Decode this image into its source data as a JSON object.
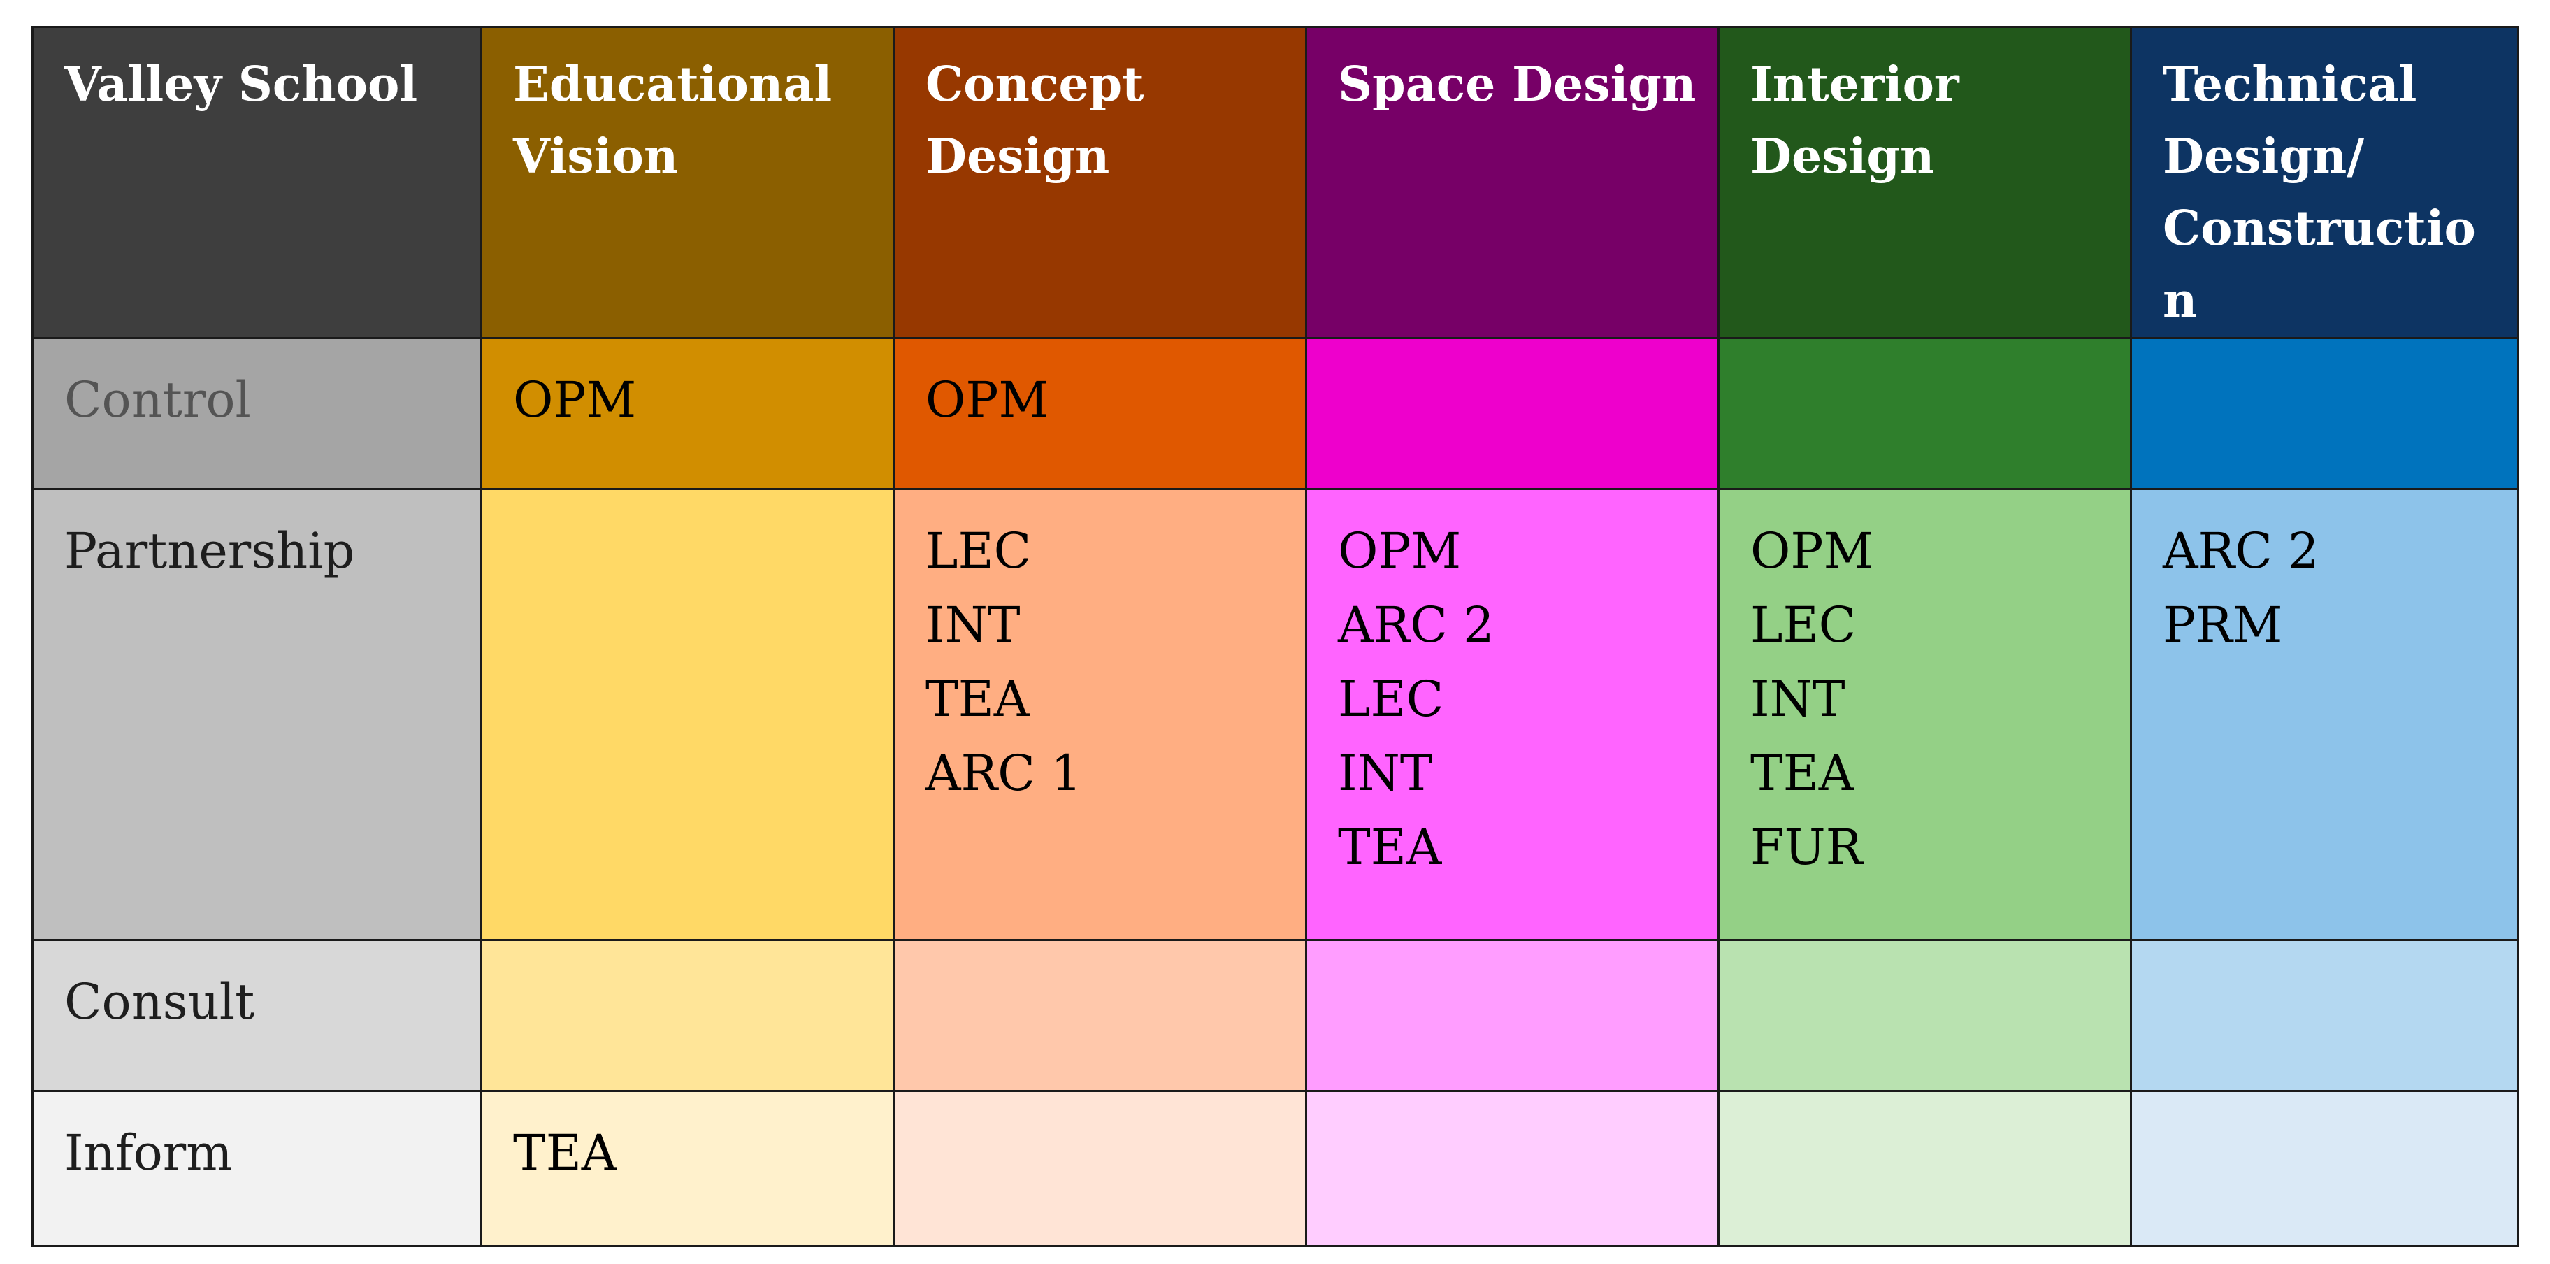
{
  "table": {
    "corner_label": "Valley School",
    "columns": [
      {
        "label_lines": [
          "Educational",
          "Vision"
        ],
        "header_color": "#8b5f00"
      },
      {
        "label_lines": [
          "Concept",
          "Design"
        ],
        "header_color": "#973800"
      },
      {
        "label_lines": [
          "Space Design"
        ],
        "header_color": "#770067"
      },
      {
        "label_lines": [
          "Interior",
          "Design"
        ],
        "header_color": "#22581b"
      },
      {
        "label_lines": [
          "Technical",
          "Design/",
          "Constructio",
          "n"
        ],
        "header_color": "#0d3463"
      }
    ],
    "rows": [
      {
        "label": "Control",
        "label_bg": "#a5a5a5",
        "label_color": "#545454",
        "cells": [
          [
            "OPM"
          ],
          [
            "OPM"
          ],
          [],
          [],
          []
        ],
        "cell_colors": [
          "#d18e00",
          "#e05800",
          "#ee00cc",
          "#2f7f2c",
          "#0073bd"
        ]
      },
      {
        "label": "Partnership",
        "label_bg": "#bfbfbf",
        "label_color": "#1e1e1e",
        "cells": [
          [],
          [
            "LEC",
            "INT",
            "TEA",
            "ARC 1"
          ],
          [
            "OPM",
            "ARC 2",
            "LEC",
            "INT",
            "TEA"
          ],
          [
            "OPM",
            "LEC",
            "INT",
            "TEA",
            "FUR"
          ],
          [
            "ARC 2",
            "PRM"
          ]
        ],
        "cell_colors": [
          "#ffd966",
          "#ffae82",
          "#ff64ff",
          "#94d086",
          "#8dc3ea"
        ]
      },
      {
        "label": "Consult",
        "label_bg": "#d8d8d8",
        "label_color": "#1e1e1e",
        "cells": [
          [],
          [],
          [],
          [],
          []
        ],
        "cell_colors": [
          "#ffe598",
          "#ffc8ab",
          "#ff9dff",
          "#b9e2b0",
          "#b4d8f1"
        ]
      },
      {
        "label": "Inform",
        "label_bg": "#f2f2f2",
        "label_color": "#1e1e1e",
        "cells": [
          [
            "TEA"
          ],
          [],
          [],
          [],
          []
        ],
        "cell_colors": [
          "#fff1cc",
          "#ffe4d6",
          "#ffcdff",
          "#dcefd6",
          "#dae9f6"
        ]
      }
    ],
    "corner_color": "#3e3e3e"
  }
}
